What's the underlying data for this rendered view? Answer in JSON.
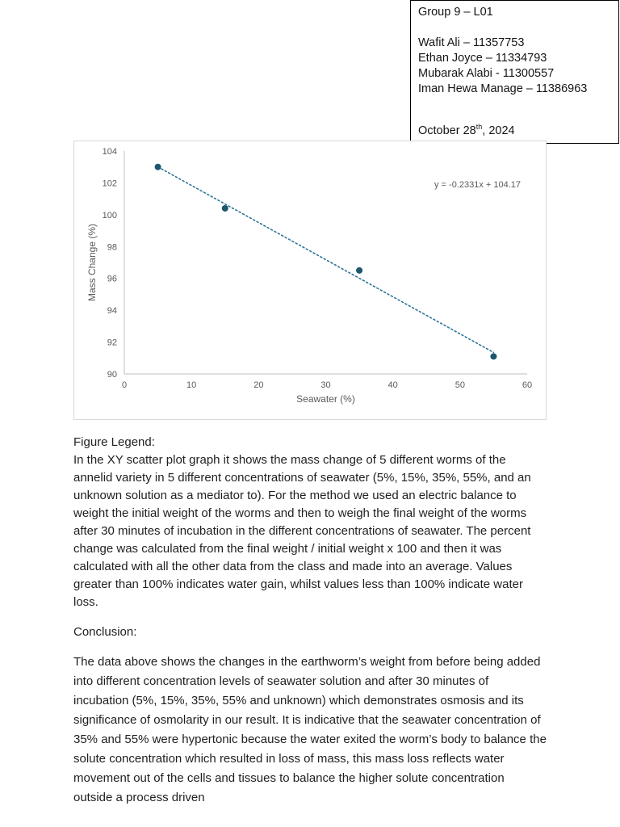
{
  "header_box": {
    "group_line": "Group 9 – L01",
    "members": [
      "Wafit Ali – 11357753",
      "Ethan Joyce – 11334793",
      "Mubarak Alabi - 11300557",
      "Iman Hewa Manage – 11386963"
    ],
    "date": {
      "prefix": "October 28",
      "superscript": "th",
      "suffix": ", 2024"
    }
  },
  "chart_data": {
    "type": "scatter",
    "title": "",
    "xlabel": "Seawater (%)",
    "ylabel": "Mass Change (%)",
    "equation": "y = -0.2331x + 104.17",
    "xlim": [
      0,
      60
    ],
    "ylim": [
      90,
      104
    ],
    "x_ticks": [
      0,
      10,
      20,
      30,
      40,
      50,
      60
    ],
    "y_ticks": [
      90,
      92,
      94,
      96,
      98,
      100,
      102,
      104
    ],
    "grid": false,
    "legend": "none",
    "points": [
      {
        "x": 5,
        "y": 103.0
      },
      {
        "x": 15,
        "y": 100.4
      },
      {
        "x": 35,
        "y": 96.5
      },
      {
        "x": 55,
        "y": 91.1
      }
    ],
    "trendline": {
      "slope": -0.2331,
      "intercept": 104.17,
      "x_start": 5,
      "x_end": 55,
      "style": "dotted"
    },
    "colors": {
      "point": "#1d566e",
      "trendline": "#2e7599",
      "axis": "#bfbfbf",
      "tick_text": "#595959",
      "equation_text": "#595959"
    }
  },
  "figure_legend": {
    "heading": "Figure Legend:",
    "body": "In the XY scatter plot graph it shows the mass change of 5 different worms of the annelid variety in 5 different concentrations of seawater (5%, 15%, 35%, 55%, and an unknown solution as a mediator to). For the method we used an electric balance to weight the initial weight of the worms and then to weigh the final weight of the worms after 30 minutes of incubation in the different concentrations of seawater.  The percent change was calculated from the final weight / initial weight x 100 and then it was calculated with all the other data from the class and made into an average. Values greater than 100% indicates water gain, whilst values less than 100% indicate water loss."
  },
  "conclusion": {
    "heading": "Conclusion:",
    "body": "The data above shows the changes in the earthworm’s weight from before being added into different concentration levels of seawater solution and after 30 minutes of incubation (5%, 15%, 35%, 55% and unknown) which demonstrates osmosis and its significance of osmolarity in our result. It is indicative that the seawater concentration of 35% and 55% were hypertonic because the water exited the worm’s body to balance the solute concentration which resulted in loss of mass, this mass loss reflects water movement out of the cells and tissues to balance the higher solute concentration outside a process driven"
  }
}
